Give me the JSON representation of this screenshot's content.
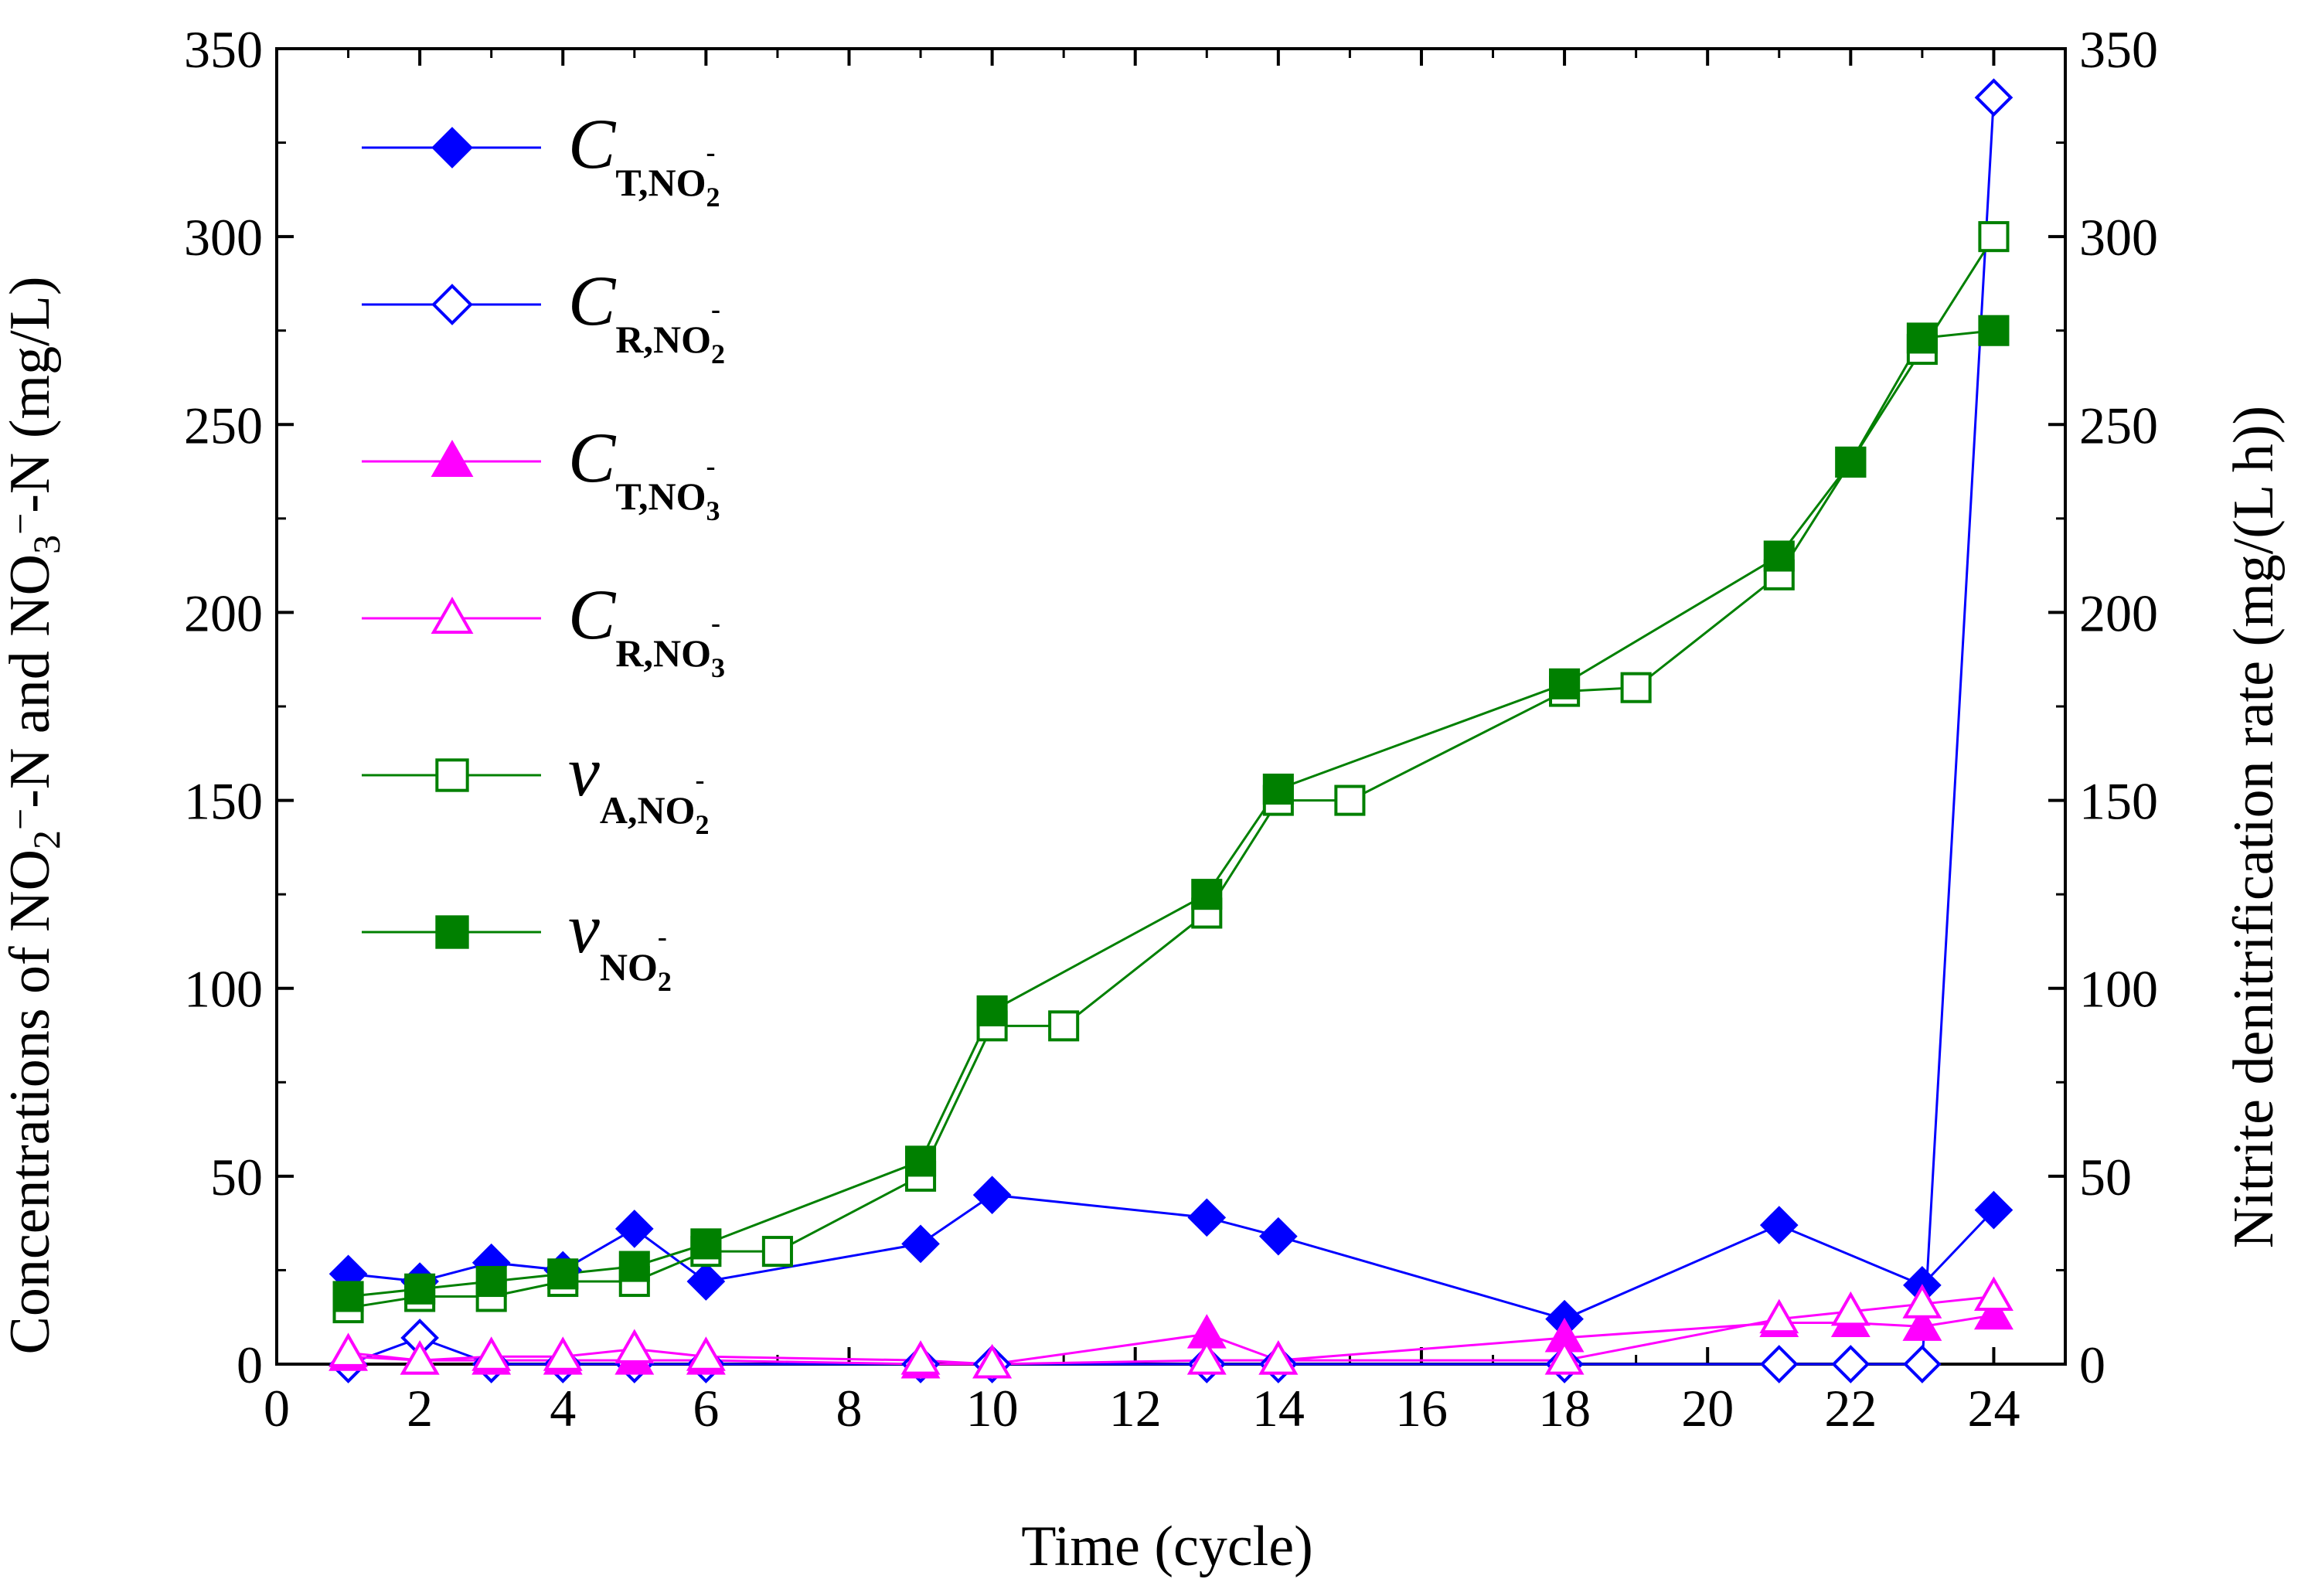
{
  "chart_data": {
    "type": "line",
    "x_axis": {
      "label": "Time (cycle)",
      "range": [
        0,
        25
      ],
      "ticks": [
        0,
        2,
        4,
        6,
        8,
        10,
        12,
        14,
        16,
        18,
        20,
        22,
        24
      ],
      "tick_labels": [
        "0",
        "2",
        "4",
        "6",
        "8",
        "10",
        "12",
        "14",
        "16",
        "18",
        "20",
        "22",
        "24"
      ]
    },
    "y_left": {
      "label": "Concentrations of NO2−-N and NO3−-N (mg/L)",
      "label_parts": {
        "prefix": "Concentrations of NO",
        "sub1": "2",
        "sup1": "−",
        "middle": "-N and NO",
        "sub2": "3",
        "sup2": "−",
        "suffix": "-N (mg/L)"
      },
      "range": [
        0,
        350
      ],
      "ticks": [
        0,
        50,
        100,
        150,
        200,
        250,
        300,
        350
      ],
      "tick_labels": [
        "0",
        "50",
        "100",
        "150",
        "200",
        "250",
        "300",
        "350"
      ]
    },
    "y_right": {
      "label": "Nitrite denitrification rate (mg/(L h))",
      "range": [
        0,
        350
      ],
      "ticks": [
        0,
        50,
        100,
        150,
        200,
        250,
        300,
        350
      ],
      "tick_labels": [
        "0",
        "50",
        "100",
        "150",
        "200",
        "250",
        "300",
        "350"
      ]
    },
    "legend_position": "top-left",
    "series": [
      {
        "id": "CT_NO2",
        "legend": {
          "main": "C",
          "sub": "T,NO",
          "sub2": "2",
          "sup": "-"
        },
        "axis": "left",
        "color": "#0000ff",
        "marker": "diamond",
        "filled": true,
        "x": [
          1,
          2,
          3,
          4,
          5,
          6,
          9,
          10,
          13,
          14,
          18,
          21,
          23,
          24
        ],
        "y": [
          24,
          22,
          27,
          25,
          36,
          22,
          32,
          45,
          39,
          34,
          12,
          37,
          21,
          41
        ]
      },
      {
        "id": "CR_NO2",
        "legend": {
          "main": "C",
          "sub": "R,NO",
          "sub2": "2",
          "sup": "-"
        },
        "axis": "left",
        "color": "#0000ff",
        "marker": "diamond",
        "filled": false,
        "x": [
          1,
          2,
          3,
          4,
          5,
          6,
          9,
          10,
          13,
          14,
          18,
          21,
          22,
          23,
          24
        ],
        "y": [
          0,
          7,
          0,
          0,
          0,
          0,
          0,
          0,
          0,
          0,
          0,
          0,
          0,
          0,
          337
        ]
      },
      {
        "id": "CT_NO3",
        "legend": {
          "main": "C",
          "sub": "T,NO",
          "sub2": "3",
          "sup": "-"
        },
        "axis": "left",
        "color": "#ff00ff",
        "marker": "triangle",
        "filled": true,
        "x": [
          1,
          2,
          3,
          4,
          5,
          6,
          9,
          10,
          13,
          14,
          18,
          21,
          22,
          23,
          24
        ],
        "y": [
          2,
          1,
          1,
          1,
          1,
          1,
          0,
          0,
          8,
          1,
          7,
          11,
          11,
          10,
          13
        ]
      },
      {
        "id": "CR_NO3",
        "legend": {
          "main": "C",
          "sub": "R,NO",
          "sub2": "3",
          "sup": "-"
        },
        "axis": "left",
        "color": "#ff00ff",
        "marker": "triangle",
        "filled": false,
        "x": [
          1,
          2,
          3,
          4,
          5,
          6,
          9,
          10,
          13,
          14,
          18,
          21,
          22,
          23,
          24
        ],
        "y": [
          3,
          1,
          2,
          2,
          4,
          2,
          1,
          0,
          1,
          1,
          1,
          12,
          14,
          16,
          18
        ]
      },
      {
        "id": "vA_NO2",
        "legend": {
          "main": "v",
          "sub": "A,NO",
          "sub2": "2",
          "sup": "-"
        },
        "axis": "right",
        "color": "#008000",
        "marker": "square",
        "filled": false,
        "x": [
          1,
          2,
          3,
          4,
          5,
          6,
          7,
          9,
          10,
          11,
          13,
          14,
          15,
          18,
          19,
          21,
          22,
          23,
          24
        ],
        "y": [
          15,
          18,
          18,
          22,
          22,
          30,
          30,
          50,
          90,
          90,
          120,
          150,
          150,
          179,
          180,
          210,
          240,
          270,
          300
        ]
      },
      {
        "id": "v_NO2",
        "legend": {
          "main": "v",
          "sub": "NO",
          "sub2": "2",
          "sup": "-"
        },
        "axis": "right",
        "color": "#008000",
        "marker": "square",
        "filled": true,
        "x": [
          1,
          2,
          3,
          4,
          5,
          6,
          9,
          10,
          13,
          14,
          18,
          21,
          22,
          23,
          24
        ],
        "y": [
          18,
          20,
          22,
          24,
          26,
          32,
          54,
          94,
          125,
          153,
          181,
          215,
          240,
          273,
          275
        ]
      }
    ]
  }
}
